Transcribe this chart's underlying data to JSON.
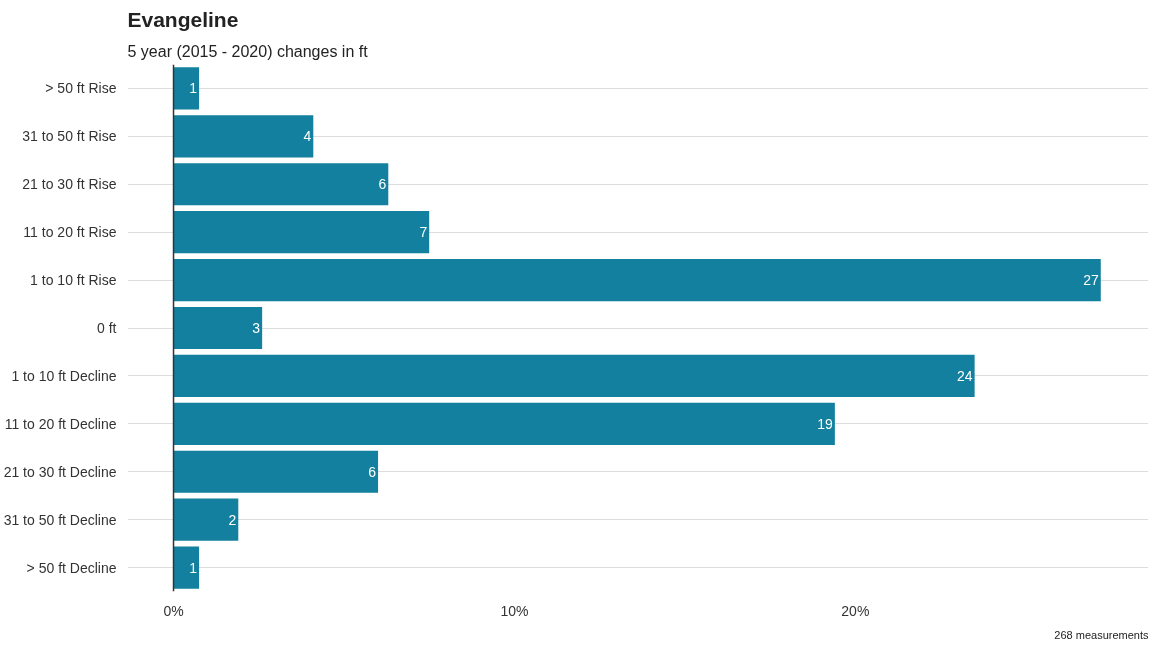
{
  "chart_data": {
    "type": "bar",
    "orientation": "horizontal",
    "title": "Evangeline",
    "subtitle": "5 year (2015 - 2020) changes in ft",
    "categories": [
      "> 50 ft Rise",
      "31 to 50 ft Rise",
      "21 to 30 ft Rise",
      "11 to 20 ft Rise",
      "1 to 10 ft Rise",
      "0 ft",
      "1 to 10 ft Decline",
      "11 to 20 ft Decline",
      "21 to 30 ft Decline",
      "31 to 50 ft Decline",
      "> 50 ft Decline"
    ],
    "series": [
      {
        "color": "#13809f",
        "values": [
          0.75,
          4.1,
          6.3,
          7.5,
          27.2,
          2.6,
          23.5,
          19.4,
          6.0,
          1.9,
          0.75
        ],
        "value_labels": [
          "1",
          "4",
          "6",
          "7",
          "27",
          "3",
          "24",
          "19",
          "6",
          "2",
          "1"
        ]
      }
    ],
    "xlim": [
      -1.35,
      28.6
    ],
    "xticks": [
      {
        "value": 0,
        "label": "0%"
      },
      {
        "value": 10,
        "label": "10%"
      },
      {
        "value": 20,
        "label": "20%"
      }
    ],
    "grid": "y",
    "ref_lines": [
      {
        "axis": "x",
        "value": 0,
        "color": "#333333"
      }
    ],
    "annotations": [
      "268 measurements"
    ]
  }
}
